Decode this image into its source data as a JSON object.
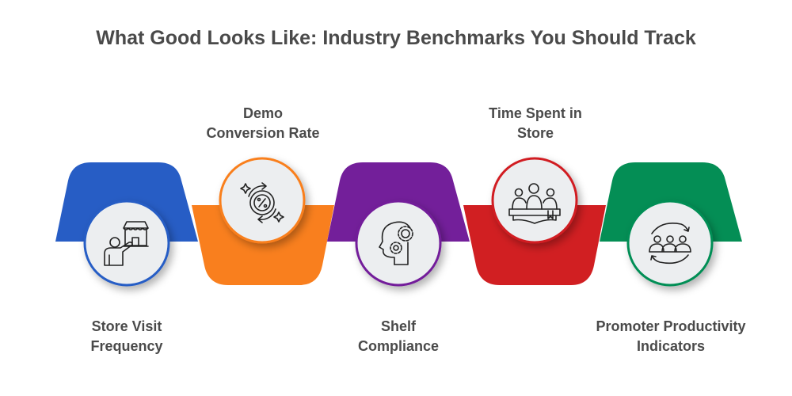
{
  "title": "What Good Looks Like: Industry Benchmarks You Should Track",
  "steps": [
    {
      "label": "Store Visit Frequency",
      "line1": "Store Visit",
      "line2": "Frequency",
      "color": "#275DC5",
      "icon": "store-visit-icon"
    },
    {
      "label": "Demo Conversion Rate",
      "line1": "Demo",
      "line2": "Conversion Rate",
      "color": "#F97F1E",
      "icon": "percent-cycle-icon"
    },
    {
      "label": "Shelf Compliance",
      "line1": "Shelf",
      "line2": "Compliance",
      "color": "#731F9A",
      "icon": "head-gears-icon"
    },
    {
      "label": "Time Spent in Store",
      "line1": "Time Spent in",
      "line2": "Store",
      "color": "#D11F22",
      "icon": "group-reading-icon"
    },
    {
      "label": "Promoter Productivity Indicators",
      "line1": "Promoter Productivity",
      "line2": "Indicators",
      "color": "#048E55",
      "icon": "team-cycle-icon"
    }
  ]
}
